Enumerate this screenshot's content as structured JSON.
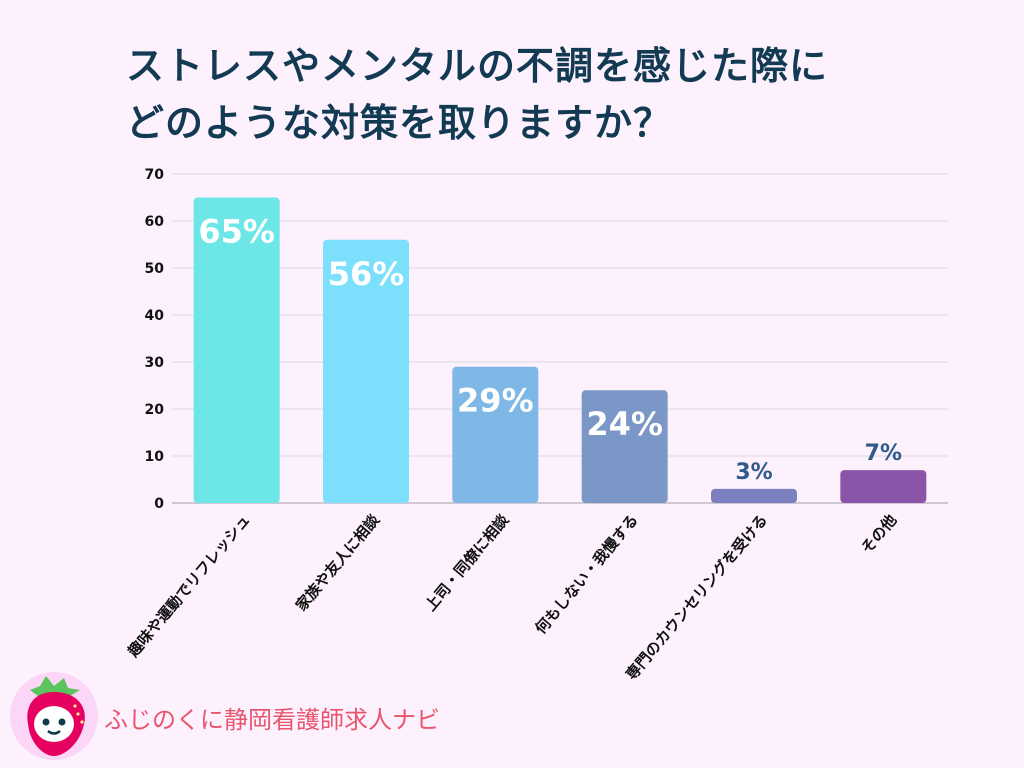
{
  "chart_data": {
    "type": "bar",
    "title_lines": [
      "ストレスやメンタルの不調を感じた際に",
      "どのような対策を取りますか？"
    ],
    "categories": [
      "趣味や運動でリフレッシュ",
      "家族や友人に相談",
      "上司・同僚に相談",
      "何もしない・我慢する",
      "専門のカウンセリングを受ける",
      "その他"
    ],
    "values": [
      65,
      56,
      29,
      24,
      3,
      7
    ],
    "data_labels": [
      "65%",
      "56%",
      "29%",
      "24%",
      "3%",
      "7%"
    ],
    "colors": [
      "#6ce6e6",
      "#7cdffc",
      "#7fb8e6",
      "#7b97c8",
      "#7c80c0",
      "#8a55a8"
    ],
    "ylim": [
      0,
      70
    ],
    "yticks": [
      0,
      10,
      20,
      30,
      40,
      50,
      60,
      70
    ],
    "grid": true,
    "xlabel": "",
    "ylabel": ""
  },
  "brand": {
    "name": "ふじのくに静岡看護師求人ナビ"
  }
}
